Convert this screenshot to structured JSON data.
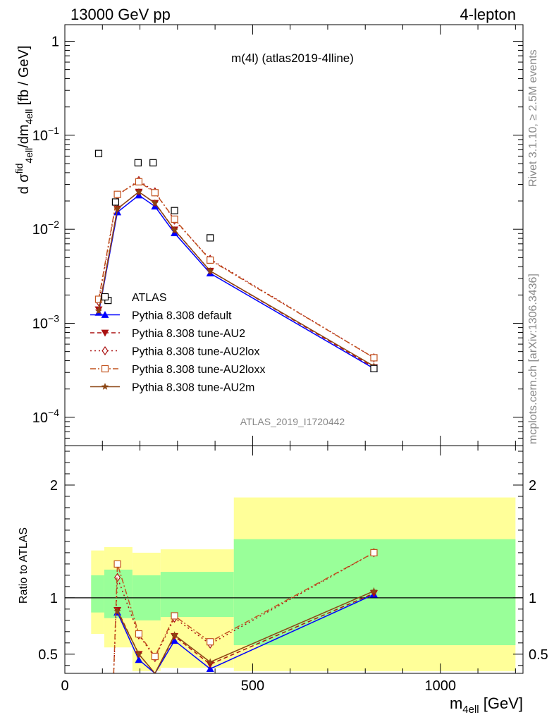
{
  "header": {
    "left": "13000 GeV pp",
    "right": "4-lepton"
  },
  "side_labels": {
    "rivet": "Rivet 3.1.10, ≥ 2.5M events",
    "mcplots": "mcplots.cern.ch [arXiv:1306.3436]"
  },
  "plot_title": "m(4l) (atlas2019-4lline)",
  "analysis_id": "ATLAS_2019_I1720442",
  "ylabel_main": "d σ^fid_4ell/dm_4ell [fb / GeV]",
  "ylabel_ratio": "Ratio to ATLAS",
  "xlabel": "m_4ell [GeV]",
  "colors": {
    "data": "#000000",
    "default": "#0000ff",
    "dark_red": "#aa1111",
    "au2loxx": "#c2531f",
    "au2m": "#8b4513",
    "band_inner": "#99ff99",
    "band_outer": "#ffff99"
  },
  "chart_data": [
    {
      "type": "line",
      "panel": "main",
      "yscale": "log",
      "xlim": [
        0,
        1220
      ],
      "ylim": [
        5e-05,
        1.5
      ],
      "yticks": [
        {
          "v": 1,
          "b": "1",
          "e": ""
        },
        {
          "v": 0.1,
          "b": "10",
          "e": "−1"
        },
        {
          "v": 0.01,
          "b": "10",
          "e": "−2"
        },
        {
          "v": 0.001,
          "b": "10",
          "e": "−3"
        },
        {
          "v": 0.0001,
          "b": "10",
          "e": "−4"
        }
      ],
      "legend_position": "center-left",
      "data": {
        "name": "ATLAS",
        "x": [
          90,
          115,
          135,
          195,
          235,
          292,
          387,
          823
        ],
        "y": [
          0.064,
          0.00175,
          0.0195,
          0.051,
          0.051,
          0.0158,
          0.0081,
          0.00033
        ]
      },
      "series": [
        {
          "name": "Pythia 8.308 default",
          "key": "default",
          "marker": "triangle-up",
          "dash": "",
          "x": [
            90,
            140,
            197,
            240,
            292,
            387,
            823
          ],
          "y": [
            0.0013,
            0.0152,
            0.023,
            0.0175,
            0.0091,
            0.0034,
            0.00033
          ]
        },
        {
          "name": "Pythia 8.308 tune-AU2",
          "key": "au2",
          "marker": "triangle-down",
          "dash": "6,4",
          "x": [
            90,
            140,
            197,
            240,
            292,
            387,
            823
          ],
          "y": [
            0.0014,
            0.0165,
            0.025,
            0.019,
            0.0099,
            0.0036,
            0.00034
          ]
        },
        {
          "name": "Pythia 8.308 tune-AU2lox",
          "key": "au2lox",
          "marker": "diamond",
          "dash": "2,4",
          "x": [
            90,
            140,
            197,
            240,
            292,
            387,
            823
          ],
          "y": [
            0.0017,
            0.023,
            0.033,
            0.025,
            0.0125,
            0.0048,
            0.00043
          ]
        },
        {
          "name": "Pythia 8.308 tune-AU2loxx",
          "key": "au2loxx",
          "marker": "square",
          "dash": "8,3,2,3",
          "x": [
            90,
            140,
            197,
            240,
            292,
            387,
            823
          ],
          "y": [
            0.0018,
            0.0235,
            0.032,
            0.0245,
            0.0128,
            0.0047,
            0.00043
          ]
        },
        {
          "name": "Pythia 8.308 tune-AU2m",
          "key": "au2m",
          "marker": "star",
          "dash": "",
          "x": [
            90,
            140,
            197,
            240,
            292,
            387,
            823
          ],
          "y": [
            0.00135,
            0.0165,
            0.025,
            0.019,
            0.0098,
            0.0036,
            0.00035
          ]
        }
      ]
    },
    {
      "type": "line",
      "panel": "ratio",
      "xlim": [
        0,
        1220
      ],
      "ylim": [
        0.33,
        2.35
      ],
      "yticks": [
        0.5,
        1,
        2
      ],
      "xticks": [
        0,
        500,
        1000
      ],
      "reference_line": 1,
      "bands": {
        "edges": [
          70,
          105,
          180,
          255,
          450,
          1200
        ],
        "inner": [
          [
            0.87,
            1.2
          ],
          [
            0.82,
            1.25
          ],
          [
            0.8,
            1.2
          ],
          [
            0.83,
            1.23
          ],
          [
            0.58,
            1.52
          ]
        ],
        "outer": [
          [
            0.68,
            1.42
          ],
          [
            0.56,
            1.45
          ],
          [
            0.35,
            1.4
          ],
          [
            0.38,
            1.43
          ],
          [
            0.35,
            1.89
          ]
        ]
      },
      "series": [
        {
          "key": "default",
          "x": [
            140,
            197,
            240,
            292,
            387,
            823
          ],
          "y": [
            0.87,
            0.45,
            0.33,
            0.62,
            0.37,
            1.03
          ]
        },
        {
          "key": "au2",
          "x": [
            140,
            197,
            240,
            292,
            387,
            823
          ],
          "y": [
            0.89,
            0.5,
            0.33,
            0.66,
            0.41,
            1.04
          ]
        },
        {
          "key": "au2lox",
          "x": [
            130,
            140,
            197,
            240,
            292,
            387,
            823
          ],
          "y": [
            0.33,
            1.18,
            0.67,
            0.47,
            0.82,
            0.59,
            1.4
          ]
        },
        {
          "key": "au2loxx",
          "x": [
            130,
            140,
            197,
            240,
            292,
            387,
            823
          ],
          "y": [
            0.33,
            1.3,
            0.68,
            0.48,
            0.84,
            0.61,
            1.4
          ]
        },
        {
          "key": "au2m",
          "x": [
            140,
            197,
            240,
            292,
            387,
            823
          ],
          "y": [
            0.88,
            0.5,
            0.33,
            0.67,
            0.43,
            1.06
          ]
        }
      ]
    }
  ]
}
